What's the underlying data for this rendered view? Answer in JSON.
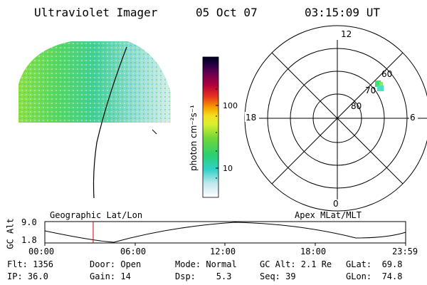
{
  "header": {
    "instrument": "Ultraviolet Imager",
    "date": "05 Oct 07",
    "time": "03:15:09 UT"
  },
  "colorbar": {
    "label": "photon cm⁻²s⁻¹",
    "ticks": [
      "100",
      "10"
    ]
  },
  "polar_plot": {
    "mlt_labels": [
      "12",
      "18",
      "6",
      "0"
    ],
    "lat_labels": [
      "60",
      "70",
      "80"
    ]
  },
  "orbit_panel": {
    "left_label": "Geographic Lat/Lon",
    "right_label": "Apex MLat/MLT",
    "y_axis_label": "GC Alt",
    "y_ticks": [
      "9.0",
      "1.8"
    ],
    "x_ticks": [
      "00:00",
      "06:00",
      "12:00",
      "18:00",
      "23:59"
    ],
    "marker_time_fraction": 0.134
  },
  "status": {
    "flt": "Flt: 1356",
    "ip": "IP: 36.0",
    "door": "Door: Open",
    "gain": "Gain: 14",
    "mode": "Mode: Normal",
    "dsp": "Dsp:    5.3",
    "gcalt": "GC Alt: 2.1 Re",
    "seq": "Seq: 39",
    "glat": "GLat:  69.8",
    "glon": "GLon:  74.8"
  },
  "colors": {
    "foreground": "#000000",
    "marker": "#cc0000",
    "aurora_green": "#40e070"
  }
}
